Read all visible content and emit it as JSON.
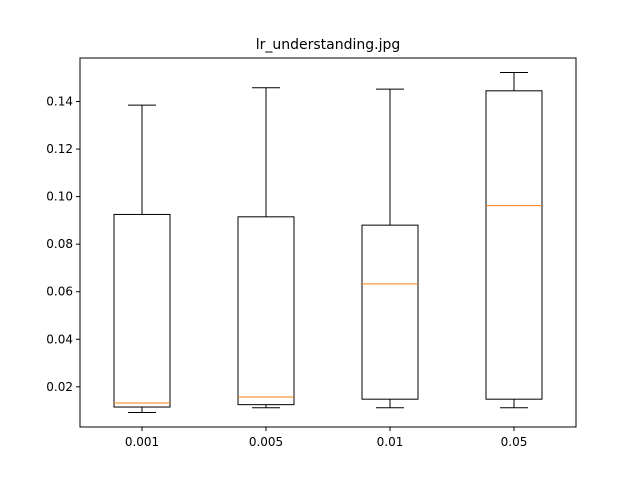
{
  "chart_data": {
    "type": "box",
    "title": "lr_understanding.jpg",
    "xlabel": "",
    "ylabel": "",
    "categories": [
      "0.001",
      "0.005",
      "0.01",
      "0.05"
    ],
    "boxes": [
      {
        "label": "0.001",
        "whisker_low": 0.0092,
        "q1": 0.0115,
        "median": 0.0132,
        "q3": 0.0925,
        "whisker_high": 0.1385
      },
      {
        "label": "0.005",
        "whisker_low": 0.0112,
        "q1": 0.0125,
        "median": 0.0157,
        "q3": 0.0915,
        "whisker_high": 0.1458
      },
      {
        "label": "0.01",
        "whisker_low": 0.0112,
        "q1": 0.0148,
        "median": 0.0633,
        "q3": 0.088,
        "whisker_high": 0.1452
      },
      {
        "label": "0.05",
        "whisker_low": 0.0112,
        "q1": 0.0148,
        "median": 0.0962,
        "q3": 0.1445,
        "whisker_high": 0.1522
      }
    ],
    "ylim": [
      0.0031,
      0.1583
    ],
    "yticks": [
      0.02,
      0.04,
      0.06,
      0.08,
      0.1,
      0.12,
      0.14
    ],
    "ytick_labels": [
      "0.02",
      "0.04",
      "0.06",
      "0.08",
      "0.10",
      "0.12",
      "0.14"
    ],
    "grid": false,
    "colors": {
      "box": "#000000",
      "median": "#ff7f0e",
      "axes": "#000000",
      "background": "#ffffff"
    }
  }
}
